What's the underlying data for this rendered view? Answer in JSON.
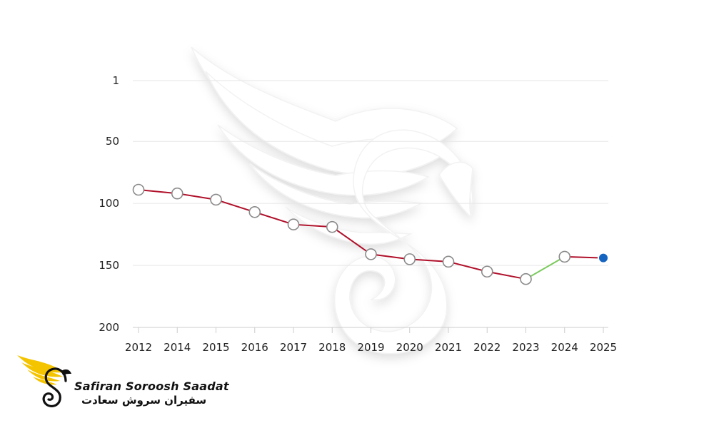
{
  "chart_data": {
    "type": "line",
    "title": "",
    "xlabel": "",
    "ylabel": "",
    "categories": [
      "2012",
      "2014",
      "2015",
      "2016",
      "2017",
      "2018",
      "2019",
      "2020",
      "2021",
      "2022",
      "2023",
      "2024",
      "2025"
    ],
    "values": [
      89,
      92,
      97,
      107,
      117,
      119,
      141,
      145,
      147,
      155,
      161,
      143,
      144
    ],
    "y_ticks": [
      "1",
      "50",
      "100",
      "150",
      "200"
    ],
    "ylim": [
      1,
      200
    ],
    "y_inverted": true,
    "grid": true,
    "legend": "none",
    "highlight_category": "2025",
    "colors": {
      "declining_segment": "#b0102a",
      "rising_segment": "#7ac95c",
      "marker_fill": "#ffffff",
      "marker_stroke": "#8a8a8a",
      "highlight_marker": "#1565c0"
    }
  },
  "branding": {
    "name_en": "Safiran Soroosh Saadat",
    "name_fa": "سفیران سروش سعادت",
    "colors": {
      "wing": "#f4c400",
      "mark": "#111111"
    }
  }
}
